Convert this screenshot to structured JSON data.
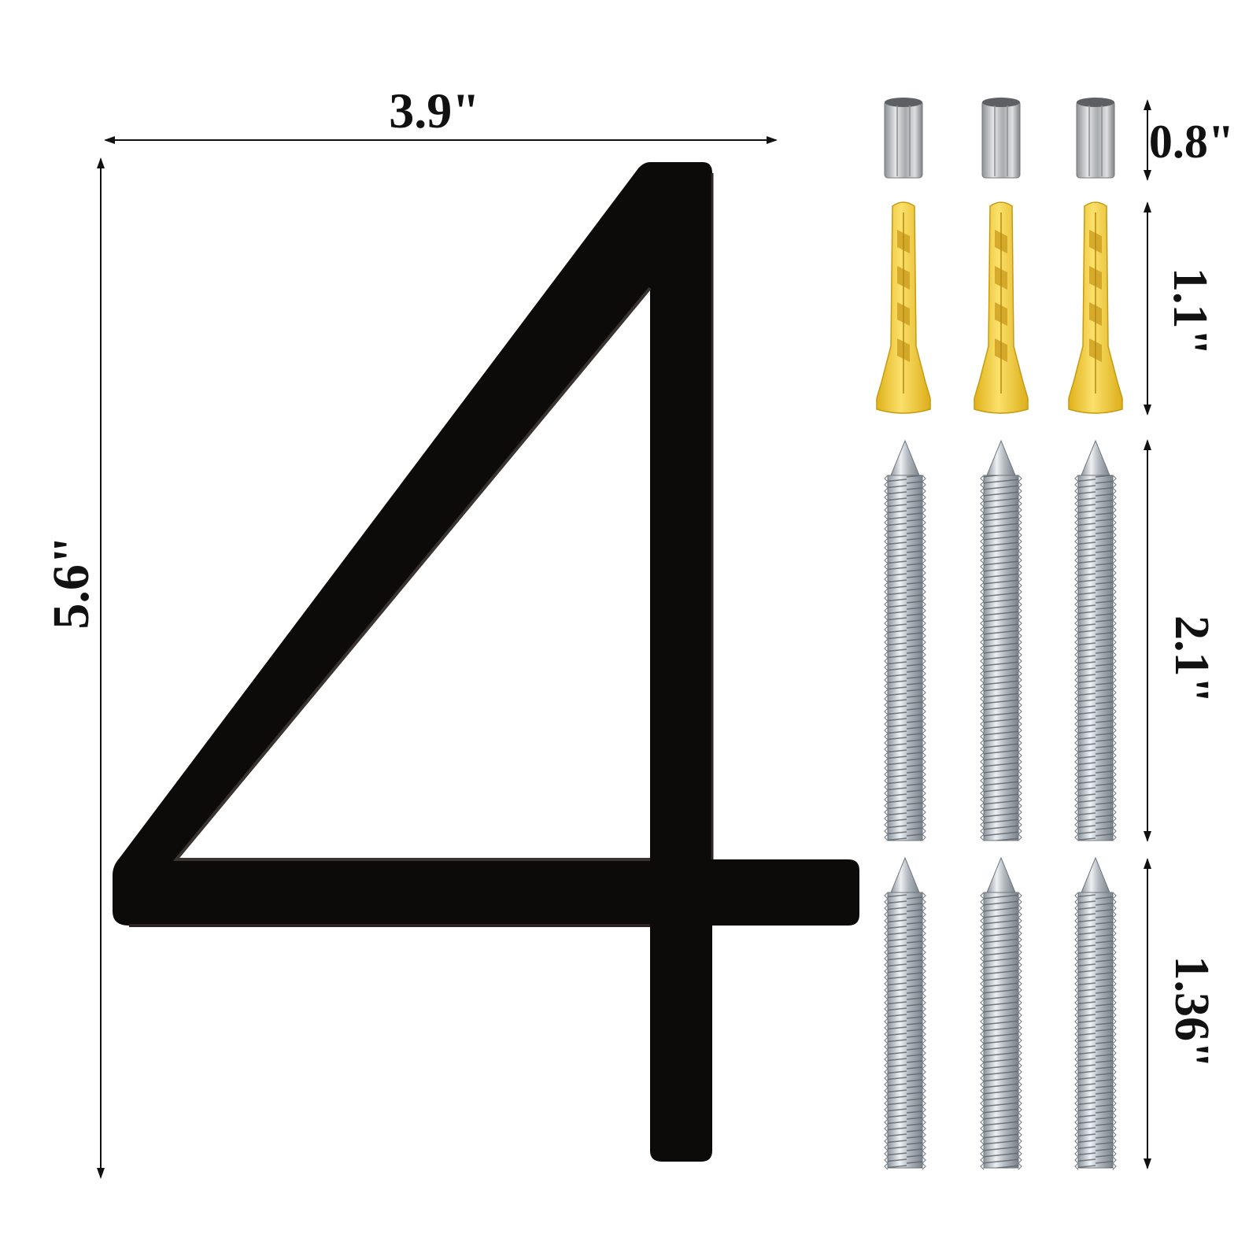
{
  "product": {
    "numeral": "4",
    "numeral_color": "#0d0b0a"
  },
  "dimensions": {
    "width_label": "3.9\"",
    "height_label": "5.6\""
  },
  "hardware": [
    {
      "name": "spacer-tube",
      "count": 3,
      "length_label": "0.8\"",
      "color": "#b9bcbf"
    },
    {
      "name": "wall-anchor",
      "count": 3,
      "length_label": "1.1\"",
      "color": "#f6d23a"
    },
    {
      "name": "long-threaded-stud",
      "count": 3,
      "length_label": "2.1\"",
      "color": "#c9ced3"
    },
    {
      "name": "short-threaded-stud",
      "count": 3,
      "length_label": "1.36\"",
      "color": "#c9ced3"
    }
  ]
}
